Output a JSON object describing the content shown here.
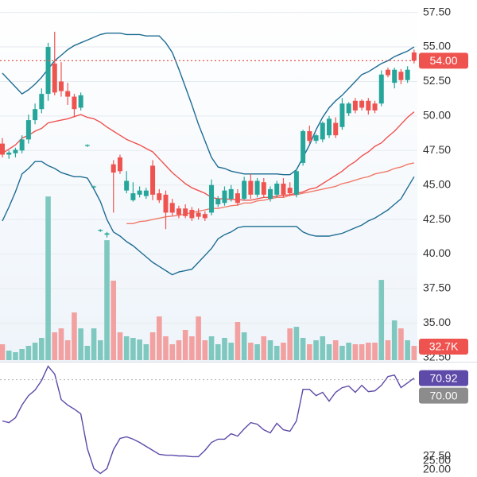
{
  "chart_data": [
    {
      "type": "candlestick",
      "open": [
        48.0,
        47.2,
        47.3,
        47.5,
        48.3,
        49.7,
        50.5,
        51.6,
        53.8,
        52.5,
        51.8,
        51.4,
        50.6,
        47.85,
        44.85,
        41.7,
        41.4,
        46.5,
        47.0,
        44.6,
        43.9,
        44.3,
        44.2,
        46.4,
        44.4,
        44.3,
        43.7,
        43.3,
        43.3,
        43.2,
        43.0,
        42.9,
        43.0,
        43.6,
        43.7,
        44.0,
        44.4,
        44.0,
        45.3,
        44.3,
        45.2,
        44.0,
        44.3,
        45.1,
        44.8,
        44.3,
        46.6,
        48.9,
        48.2,
        48.3,
        48.6,
        49.5,
        49.2,
        50.2,
        51.1,
        51.1,
        51.1,
        50.9,
        50.9,
        53.35,
        52.4,
        53.2,
        52.6,
        54.6
      ],
      "high": [
        48.4,
        47.5,
        47.7,
        48.6,
        50.1,
        50.9,
        52.0,
        55.3,
        56.1,
        53.9,
        52.4,
        51.6,
        51.7,
        47.95,
        44.95,
        41.8,
        41.6,
        46.8,
        47.2,
        46.0,
        45.2,
        44.9,
        44.8,
        46.8,
        44.7,
        44.6,
        44.0,
        43.5,
        43.6,
        43.4,
        43.3,
        43.1,
        45.4,
        44.2,
        44.9,
        45.0,
        44.7,
        45.6,
        45.8,
        45.5,
        45.5,
        44.9,
        45.3,
        45.5,
        45.2,
        46.2,
        49.0,
        49.3,
        48.7,
        49.6,
        50.0,
        49.9,
        51.3,
        51.0,
        51.3,
        51.2,
        51.3,
        51.1,
        53.3,
        53.5,
        53.5,
        53.4,
        53.6,
        54.8
      ],
      "low": [
        47.0,
        46.9,
        47.0,
        47.3,
        48.0,
        49.4,
        50.2,
        51.1,
        51.5,
        51.4,
        50.8,
        49.9,
        50.4,
        47.75,
        44.75,
        41.6,
        41.2,
        43.0,
        45.8,
        44.4,
        43.8,
        44.1,
        44.0,
        43.9,
        43.7,
        41.8,
        42.8,
        42.6,
        42.6,
        42.4,
        42.5,
        42.4,
        42.8,
        43.4,
        43.5,
        43.8,
        43.5,
        43.9,
        44.0,
        44.1,
        44.1,
        43.8,
        44.1,
        44.1,
        44.2,
        44.1,
        46.4,
        48.0,
        48.0,
        48.1,
        48.4,
        48.4,
        49.0,
        50.0,
        50.2,
        50.4,
        50.1,
        50.2,
        50.7,
        52.8,
        52.0,
        52.3,
        52.4,
        53.8
      ],
      "close": [
        47.2,
        47.35,
        47.55,
        48.3,
        49.7,
        50.5,
        51.6,
        55.0,
        51.7,
        51.8,
        51.4,
        50.5,
        51.5,
        47.9,
        44.9,
        41.75,
        41.5,
        45.9,
        46.0,
        45.3,
        44.4,
        44.6,
        44.6,
        44.3,
        43.9,
        43.0,
        43.0,
        42.85,
        42.75,
        42.6,
        42.7,
        42.6,
        45.0,
        44.0,
        44.6,
        44.7,
        43.7,
        45.3,
        44.3,
        45.3,
        44.3,
        44.7,
        45.1,
        44.3,
        44.4,
        46.0,
        48.9,
        48.2,
        48.6,
        49.5,
        49.8,
        48.6,
        50.9,
        50.9,
        50.4,
        50.6,
        50.4,
        50.4,
        53.0,
        52.95,
        53.35,
        52.6,
        53.35,
        54.0
      ],
      "up_color": "#26a69a",
      "down_color": "#ef5350",
      "last_price_label": "54.00",
      "series": [
        {
          "color": "#1e6c93",
          "values": [
            53.1,
            52.6,
            52.1,
            51.6,
            51.9,
            52.3,
            52.8,
            53.4,
            54.0,
            54.4,
            54.8,
            55.1,
            55.3,
            55.5,
            55.7,
            55.9,
            56.0,
            56.0,
            56.0,
            55.9,
            55.9,
            55.9,
            55.8,
            55.8,
            55.8,
            55.3,
            54.6,
            53.4,
            52.1,
            50.8,
            49.4,
            48.2,
            47.0,
            46.3,
            46.2,
            46.0,
            45.9,
            45.8,
            45.8,
            45.8,
            45.8,
            45.8,
            45.8,
            45.75,
            45.75,
            46.1,
            47.0,
            47.9,
            49.0,
            49.9,
            50.6,
            51.1,
            51.5,
            52.0,
            52.5,
            53.0,
            53.2,
            53.5,
            53.8,
            54.0,
            54.3,
            54.5,
            54.7,
            55.0
          ]
        },
        {
          "color": "#ef5350",
          "values": [
            47.3,
            47.6,
            47.9,
            48.4,
            48.6,
            48.9,
            49.1,
            49.5,
            49.6,
            49.7,
            49.8,
            49.95,
            50.1,
            49.9,
            49.8,
            49.55,
            49.2,
            48.9,
            48.6,
            48.3,
            48.1,
            47.9,
            47.65,
            47.4,
            46.9,
            46.4,
            45.9,
            45.5,
            45.1,
            44.8,
            44.6,
            44.4,
            44.1,
            44.0,
            44.0,
            43.95,
            43.95,
            43.9,
            43.9,
            44.0,
            44.1,
            44.1,
            44.2,
            44.25,
            44.3,
            44.4,
            44.5,
            44.7,
            44.8,
            45.1,
            45.4,
            45.7,
            46.0,
            46.4,
            46.7,
            47.1,
            47.4,
            47.8,
            48.05,
            48.5,
            48.9,
            49.4,
            49.9,
            50.3
          ]
        },
        {
          "color": "#1e6c93",
          "values": [
            42.4,
            43.4,
            44.5,
            45.8,
            46.2,
            46.7,
            46.7,
            46.4,
            46.2,
            45.9,
            45.75,
            45.6,
            45.6,
            45.5,
            44.7,
            43.8,
            42.5,
            41.6,
            41.3,
            40.9,
            40.6,
            40.2,
            39.8,
            39.4,
            39.1,
            38.8,
            38.5,
            38.7,
            38.8,
            38.9,
            39.4,
            39.9,
            40.4,
            41.1,
            41.4,
            41.6,
            41.9,
            42.0,
            42.0,
            42.0,
            42.0,
            42.0,
            42.0,
            42.0,
            42.0,
            42.0,
            41.6,
            41.4,
            41.3,
            41.3,
            41.3,
            41.4,
            41.5,
            41.7,
            41.9,
            42.1,
            42.4,
            42.6,
            42.9,
            43.2,
            43.6,
            44.0,
            44.8,
            45.6
          ]
        },
        {
          "color": "#f07a6a",
          "values": [
            null,
            null,
            null,
            null,
            null,
            null,
            null,
            null,
            null,
            null,
            null,
            null,
            null,
            null,
            null,
            null,
            null,
            null,
            null,
            42.2,
            42.2,
            42.35,
            42.4,
            42.5,
            42.6,
            42.7,
            42.75,
            42.8,
            42.9,
            43.0,
            43.1,
            43.2,
            43.3,
            43.3,
            43.4,
            43.5,
            43.55,
            43.7,
            43.7,
            43.85,
            43.9,
            44.0,
            44.1,
            44.1,
            44.25,
            44.3,
            44.4,
            44.5,
            44.6,
            44.7,
            44.8,
            44.9,
            45.1,
            45.2,
            45.35,
            45.5,
            45.6,
            45.8,
            45.9,
            46.0,
            46.2,
            46.3,
            46.5,
            46.6
          ]
        }
      ],
      "volume": {
        "values": [
          36400,
          21800,
          18200,
          25500,
          32800,
          40000,
          51000,
          374900,
          63700,
          72800,
          45500,
          109200,
          72800,
          32800,
          72800,
          45500,
          274800,
          182000,
          63700,
          54600,
          51000,
          47300,
          36400,
          63700,
          100100,
          54600,
          36400,
          45500,
          69200,
          54600,
          100100,
          45500,
          54600,
          36400,
          51000,
          40000,
          87400,
          63700,
          40000,
          36400,
          54600,
          45500,
          32800,
          40000,
          72800,
          76400,
          51000,
          36400,
          45500,
          54600,
          36400,
          45500,
          32800,
          40000,
          36400,
          36400,
          40000,
          40000,
          183800,
          45500,
          91000,
          72800,
          45500,
          32700
        ],
        "ylim": [
          0,
          825000
        ],
        "up_color": "#7fc8bf",
        "down_color": "#f2a0a0",
        "last_label": "32.7K"
      },
      "ylim": [
        32.2,
        58.4
      ],
      "yticks": [
        {
          "value": 57.5,
          "label": "57.50"
        },
        {
          "value": 55,
          "label": "55.00"
        },
        {
          "value": 52.5,
          "label": "52.50"
        },
        {
          "value": 50,
          "label": "50.00"
        },
        {
          "value": 47.5,
          "label": "47.50"
        },
        {
          "value": 45,
          "label": "45.00"
        },
        {
          "value": 42.5,
          "label": "42.50"
        },
        {
          "value": 40,
          "label": "40.00"
        },
        {
          "value": 37.5,
          "label": "37.50"
        },
        {
          "value": 35,
          "label": "35.00"
        },
        {
          "value": 32.5,
          "label": "32.50"
        }
      ],
      "grid": true
    },
    {
      "type": "line",
      "series": [
        {
          "color": "#5e4aa8",
          "values": [
            47.1,
            46.2,
            48.9,
            56.0,
            61.2,
            64.3,
            69.6,
            77.5,
            73.1,
            59.0,
            55.9,
            53.7,
            51.1,
            31.7,
            20.7,
            18.0,
            20.7,
            31.2,
            37.4,
            38.3,
            37.0,
            35.2,
            33.0,
            30.8,
            28.6,
            28.1,
            28.1,
            27.7,
            27.7,
            27.3,
            27.3,
            30.8,
            35.2,
            37.0,
            37.0,
            40.0,
            38.7,
            42.7,
            46.2,
            45.3,
            42.2,
            40.5,
            45.8,
            42.2,
            41.4,
            47.1,
            64.7,
            64.7,
            61.2,
            63.0,
            58.1,
            63.0,
            65.6,
            66.5,
            63.0,
            66.9,
            63.4,
            63.8,
            66.9,
            71.8,
            72.6,
            65.6,
            68.2,
            70.92
          ]
        }
      ],
      "ylim": [
        16,
        80
      ],
      "yticks": [
        {
          "value": 70,
          "label": "70.00"
        },
        {
          "value": 27.5,
          "label": "27.50"
        },
        {
          "value": 25,
          "label": "25.00"
        },
        {
          "value": 20,
          "label": "20.00"
        }
      ]
    }
  ]
}
